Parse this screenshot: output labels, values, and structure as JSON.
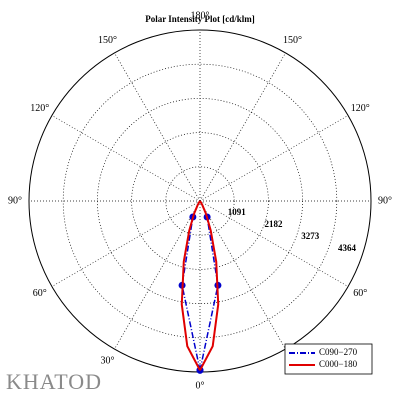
{
  "chart_data": {
    "type": "polar",
    "title": "Polar Intensity Plot [cd/klm]",
    "rlim": [
      0,
      5455
    ],
    "rticks": [
      1091,
      2182,
      3273,
      4364
    ],
    "thetaticks": [
      {
        "value": 0,
        "label": "0°"
      },
      {
        "value": 30,
        "label": "30°"
      },
      {
        "value": 60,
        "label": "60°"
      },
      {
        "value": 90,
        "label": "90°"
      },
      {
        "value": 120,
        "label": "120°"
      },
      {
        "value": 150,
        "label": "150°"
      },
      {
        "value": 180,
        "label": "180°"
      }
    ],
    "grid": true,
    "legend": "lower right",
    "series": [
      {
        "name": "C090−270",
        "color": "#0000cc",
        "style": "dashdot",
        "markers": true,
        "angles": [
          0,
          12,
          24
        ],
        "values": [
          5400,
          2750,
          560
        ]
      },
      {
        "name": "C000−180",
        "color": "#e00000",
        "style": "solid",
        "markers": false,
        "angles": [
          0,
          5,
          10,
          15,
          20,
          25,
          30,
          35,
          40
        ],
        "values": [
          5400,
          4650,
          3350,
          2000,
          1000,
          450,
          150,
          30,
          0
        ]
      }
    ]
  },
  "logo": "KHATOD"
}
